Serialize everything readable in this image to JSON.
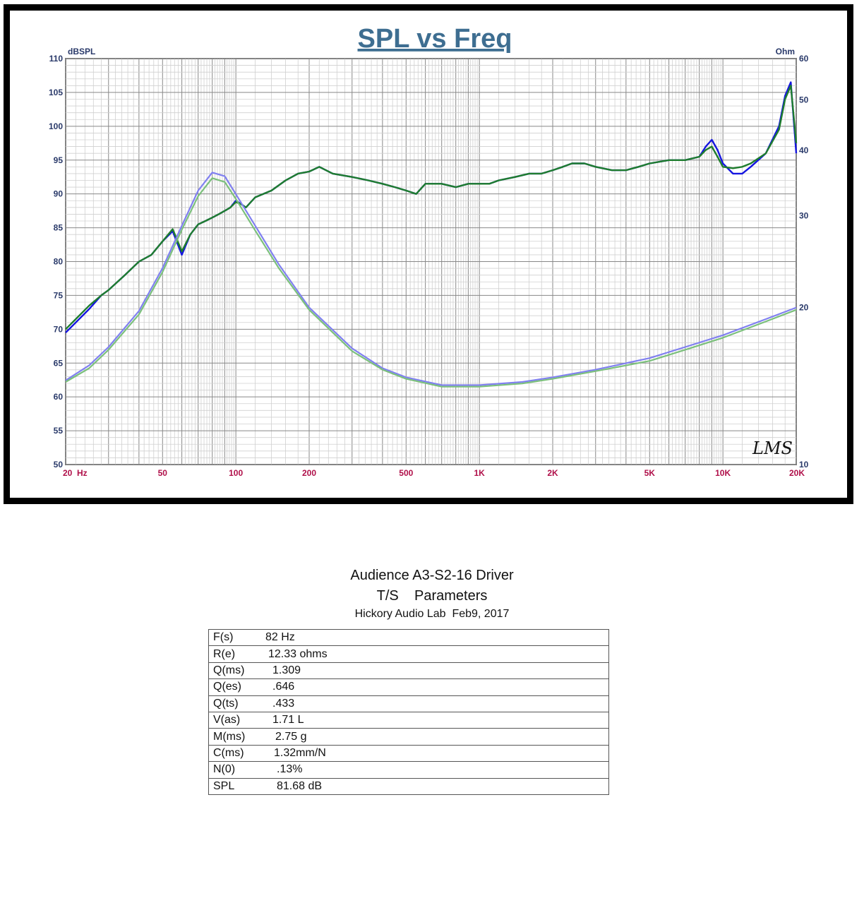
{
  "chart_data": {
    "type": "line",
    "title": "SPL vs Freq",
    "left_axis": {
      "label": "dBSPL",
      "range": [
        50,
        110
      ],
      "ticks": [
        50,
        55,
        60,
        65,
        70,
        75,
        80,
        85,
        90,
        95,
        100,
        105,
        110
      ]
    },
    "right_axis": {
      "label": "Ohm",
      "range": [
        10,
        60
      ],
      "scale": "log",
      "ticks": [
        {
          "value": 10,
          "label": "10"
        },
        {
          "value": 20,
          "label": "20"
        },
        {
          "value": 30,
          "label": "30"
        },
        {
          "value": 40,
          "label": "40"
        },
        {
          "value": 50,
          "label": "50"
        },
        {
          "value": 60,
          "label": "60"
        }
      ]
    },
    "x_axis": {
      "range": [
        20,
        20000
      ],
      "scale": "log",
      "ticks": [
        {
          "value": 20,
          "label": "20  Hz"
        },
        {
          "value": 50,
          "label": "50"
        },
        {
          "value": 100,
          "label": "100"
        },
        {
          "value": 200,
          "label": "200"
        },
        {
          "value": 500,
          "label": "500"
        },
        {
          "value": 1000,
          "label": "1K"
        },
        {
          "value": 2000,
          "label": "2K"
        },
        {
          "value": 5000,
          "label": "5K"
        },
        {
          "value": 10000,
          "label": "10K"
        },
        {
          "value": 20000,
          "label": "20K"
        }
      ]
    },
    "grid": true,
    "watermark": "LMS",
    "series": [
      {
        "axis": "left",
        "color": "#1515e0",
        "x": [
          20,
          22,
          25,
          28,
          30,
          35,
          40,
          45,
          50,
          55,
          60,
          65,
          70,
          75,
          80,
          85,
          90,
          95,
          100,
          105,
          110,
          120,
          140,
          160,
          180,
          200,
          220,
          250,
          300,
          350,
          400,
          450,
          500,
          550,
          600,
          700,
          800,
          900,
          1000,
          1100,
          1200,
          1400,
          1600,
          1800,
          2000,
          2200,
          2400,
          2700,
          3000,
          3500,
          4000,
          4500,
          5000,
          6000,
          7000,
          8000,
          8500,
          9000,
          9500,
          10000,
          11000,
          12000,
          13000,
          15000,
          17000,
          18000,
          19000,
          20000
        ],
        "y": [
          69.5,
          71,
          73,
          75,
          75.8,
          78,
          80,
          81,
          83,
          84.5,
          81,
          84,
          85.5,
          86,
          86.5,
          87,
          87.5,
          88,
          89,
          88.5,
          88,
          89.5,
          90.5,
          92,
          93,
          93.3,
          94,
          93,
          92.5,
          92,
          91.5,
          91,
          90.5,
          90,
          91.5,
          91.5,
          91,
          91.5,
          91.5,
          91.5,
          92,
          92.5,
          93,
          93,
          93.5,
          94,
          94.5,
          94.5,
          94,
          93.5,
          93.5,
          94,
          94.5,
          95,
          95,
          95.5,
          97,
          98,
          96.5,
          94.5,
          93,
          93,
          94,
          96,
          100,
          104.5,
          106.5,
          96
        ]
      },
      {
        "axis": "left",
        "color": "#1f7d2e",
        "x": [
          20,
          22,
          25,
          28,
          30,
          35,
          40,
          45,
          50,
          55,
          60,
          65,
          70,
          75,
          80,
          85,
          90,
          95,
          100,
          105,
          110,
          120,
          140,
          160,
          180,
          200,
          220,
          250,
          300,
          350,
          400,
          450,
          500,
          550,
          600,
          700,
          800,
          900,
          1000,
          1100,
          1200,
          1400,
          1600,
          1800,
          2000,
          2200,
          2400,
          2700,
          3000,
          3500,
          4000,
          4500,
          5000,
          6000,
          7000,
          8000,
          8500,
          9000,
          9500,
          10000,
          11000,
          12000,
          13000,
          15000,
          17000,
          18000,
          19000,
          20000
        ],
        "y": [
          70,
          71.5,
          73.5,
          75,
          75.8,
          78,
          80,
          81,
          83,
          84.8,
          81.5,
          84,
          85.5,
          86,
          86.5,
          87,
          87.5,
          88,
          88.8,
          88.5,
          88,
          89.5,
          90.5,
          92,
          93,
          93.3,
          94,
          93,
          92.5,
          92,
          91.5,
          91,
          90.5,
          90,
          91.5,
          91.5,
          91,
          91.5,
          91.5,
          91.5,
          92,
          92.5,
          93,
          93,
          93.5,
          94,
          94.5,
          94.5,
          94,
          93.5,
          93.5,
          94,
          94.5,
          95,
          95,
          95.5,
          96.5,
          97,
          95.5,
          94,
          93.8,
          94,
          94.5,
          96,
          99.5,
          104,
          106,
          97.5
        ]
      },
      {
        "axis": "right",
        "color": "#8080f0",
        "x": [
          20,
          25,
          30,
          40,
          50,
          60,
          70,
          80,
          90,
          100,
          120,
          150,
          200,
          300,
          400,
          500,
          700,
          1000,
          1500,
          2000,
          3000,
          5000,
          7000,
          10000,
          15000,
          20000
        ],
        "y": [
          14.5,
          15.5,
          16.8,
          19.7,
          23.8,
          28.7,
          33.5,
          36.3,
          35.7,
          33,
          28.7,
          24.2,
          20,
          16.7,
          15.3,
          14.7,
          14.2,
          14.2,
          14.4,
          14.7,
          15.2,
          16,
          16.8,
          17.7,
          19,
          20
        ]
      },
      {
        "axis": "right",
        "color": "#7cc07c",
        "x": [
          20,
          25,
          30,
          40,
          50,
          60,
          70,
          80,
          90,
          100,
          120,
          150,
          200,
          300,
          400,
          500,
          700,
          1000,
          1500,
          2000,
          3000,
          5000,
          7000,
          10000,
          15000,
          20000
        ],
        "y": [
          14.4,
          15.3,
          16.6,
          19.4,
          23.4,
          28.2,
          32.7,
          35.4,
          34.8,
          32.3,
          28.1,
          23.8,
          19.8,
          16.5,
          15.2,
          14.6,
          14.1,
          14.1,
          14.3,
          14.6,
          15.1,
          15.8,
          16.6,
          17.5,
          18.8,
          19.8
        ]
      }
    ]
  },
  "driver_title": "Audience A3-S2-16 Driver",
  "params_title": "T/S    Parameters",
  "lab_line": "Hickory Audio Lab  Feb9, 2017",
  "parameters": [
    {
      "name": "F(s)",
      "value": "82 Hz",
      "indent": 0
    },
    {
      "name": "R(e)",
      "value": "12.33 ohms",
      "indent": 4
    },
    {
      "name": "Q(ms)",
      "value": "1.309",
      "indent": 10
    },
    {
      "name": "Q(es)",
      "value": ".646",
      "indent": 10
    },
    {
      "name": "Q(ts)",
      "value": ".433",
      "indent": 10
    },
    {
      "name": "V(as)",
      "value": "1.71 L",
      "indent": 10
    },
    {
      "name": "M(ms)",
      "value": "2.75 g",
      "indent": 14
    },
    {
      "name": "C(ms)",
      "value": "1.32mm/N",
      "indent": 12
    },
    {
      "name": "N(0)",
      "value": ".13%",
      "indent": 16
    },
    {
      "name": "SPL",
      "value": "81.68 dB",
      "indent": 16
    }
  ]
}
